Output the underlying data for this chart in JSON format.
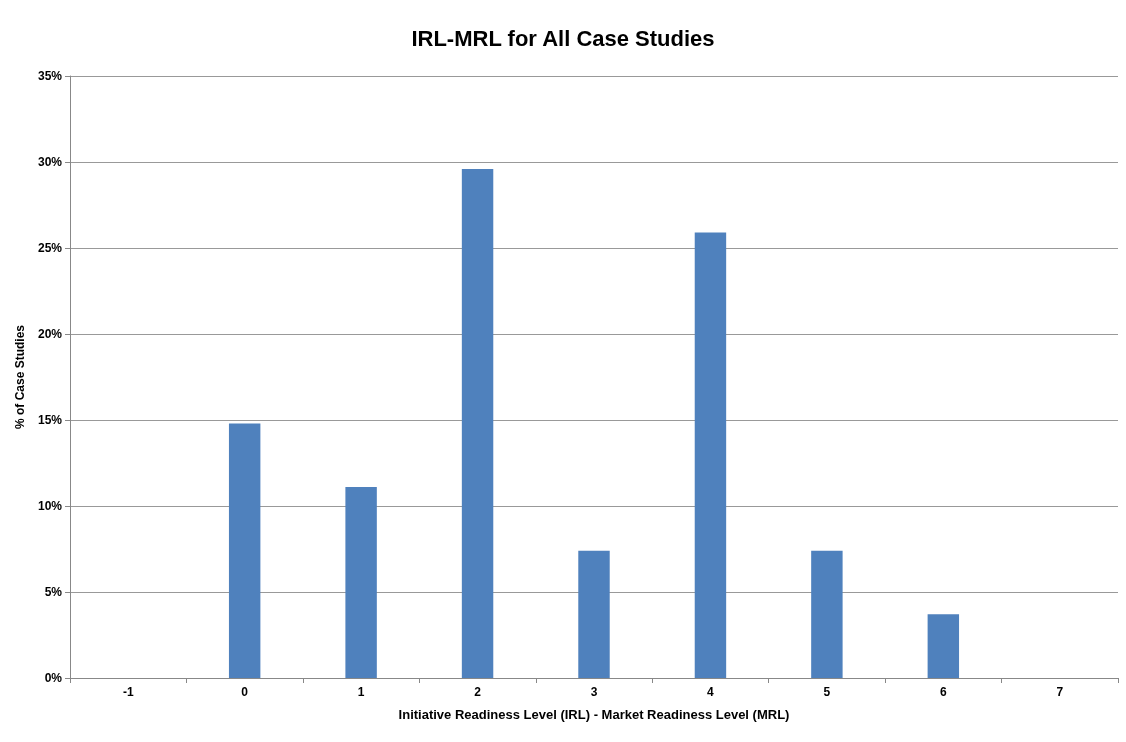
{
  "chart_data": {
    "type": "bar",
    "title": "IRL-MRL for All Case Studies",
    "xlabel": "Initiative Readiness Level (IRL) - Market Readiness Level (MRL)",
    "ylabel": "% of Case Studies",
    "categories": [
      "-1",
      "0",
      "1",
      "2",
      "3",
      "4",
      "5",
      "6",
      "7"
    ],
    "values": [
      0,
      14.8,
      11.1,
      29.6,
      7.4,
      25.9,
      7.4,
      3.7,
      0
    ],
    "color": "#4f81bd",
    "ylim": [
      0,
      35
    ],
    "yticks": [
      {
        "value": 0,
        "label": "0%"
      },
      {
        "value": 5,
        "label": "5%"
      },
      {
        "value": 10,
        "label": "10%"
      },
      {
        "value": 15,
        "label": "15%"
      },
      {
        "value": 20,
        "label": "20%"
      },
      {
        "value": 25,
        "label": "25%"
      },
      {
        "value": 30,
        "label": "30%"
      },
      {
        "value": 35,
        "label": "35%"
      }
    ],
    "grid": "y"
  }
}
